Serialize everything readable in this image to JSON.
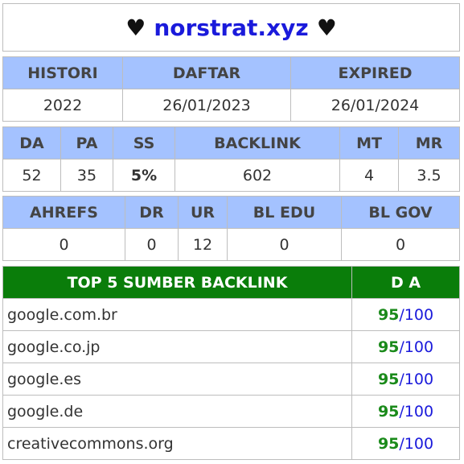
{
  "title": {
    "heart_left": "♥",
    "domain": "norstrat.xyz",
    "heart_right": "♥"
  },
  "history": {
    "headers": [
      "HISTORI",
      "DAFTAR",
      "EXPIRED"
    ],
    "values": [
      "2022",
      "26/01/2023",
      "26/01/2024"
    ]
  },
  "metrics": {
    "headers": [
      "DA",
      "PA",
      "SS",
      "BACKLINK",
      "MT",
      "MR"
    ],
    "values": [
      "52",
      "35",
      "5%",
      "602",
      "4",
      "3.5"
    ]
  },
  "ahrefs": {
    "headers": [
      "AHREFS",
      "DR",
      "UR",
      "BL EDU",
      "BL GOV"
    ],
    "values": [
      "0",
      "0",
      "12",
      "0",
      "0"
    ]
  },
  "backlinks": {
    "header_source": "TOP 5 SUMBER BACKLINK",
    "header_da": "D A",
    "rows": [
      {
        "site": "google.com.br",
        "da": "95",
        "max": "100"
      },
      {
        "site": "google.co.jp",
        "da": "95",
        "max": "100"
      },
      {
        "site": "google.es",
        "da": "95",
        "max": "100"
      },
      {
        "site": "google.de",
        "da": "95",
        "max": "100"
      },
      {
        "site": "creativecommons.org",
        "da": "95",
        "max": "100"
      }
    ],
    "separator": "/"
  },
  "colors": {
    "header_blue": "#a4c2ff",
    "header_green": "#0a7d0a",
    "value_green": "#1a8a1a",
    "value_blue": "#1a1adb"
  }
}
